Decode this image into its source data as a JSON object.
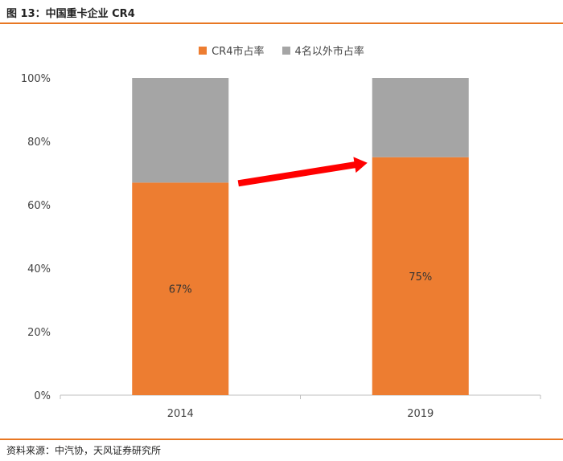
{
  "figure": {
    "title": "图 13：中国重卡企业 CR4",
    "source": "资料来源：中汽协，天风证券研究所"
  },
  "colors": {
    "accent": "#E87722",
    "cr4": "#ED7D31",
    "others": "#A5A5A5",
    "arrow": "#FF0000"
  },
  "chart_data": {
    "type": "bar",
    "stacked": true,
    "categories": [
      "2014",
      "2019"
    ],
    "series": [
      {
        "name": "CR4市占率",
        "values": [
          67,
          75
        ],
        "labels": [
          "67%",
          "75%"
        ]
      },
      {
        "name": "4名以外市占率",
        "values": [
          33,
          25
        ]
      }
    ],
    "ylim": [
      0,
      100
    ],
    "yticks": [
      "0%",
      "20%",
      "40%",
      "60%",
      "80%",
      "100%"
    ],
    "ytick_values": [
      0,
      20,
      40,
      60,
      80,
      100
    ],
    "legend_position": "top-center",
    "annotation": "arrow from 2014 CR4 top to 2019 CR4 top"
  }
}
